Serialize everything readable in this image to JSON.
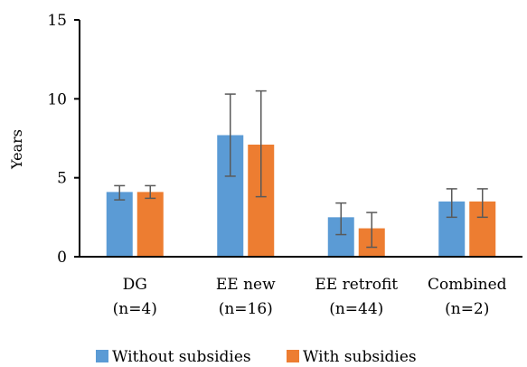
{
  "chart_data": {
    "type": "bar",
    "ylabel": "Years",
    "ylim": [
      0,
      15
    ],
    "yticks": [
      0,
      5,
      10,
      15
    ],
    "categories": [
      [
        "DG",
        "(n=4)"
      ],
      [
        "EE new",
        "(n=16)"
      ],
      [
        "EE retrofit",
        "(n=44)"
      ],
      [
        "Combined",
        "(n=2)"
      ]
    ],
    "series": [
      {
        "name": "Without subsidies",
        "color": "#5B9BD5",
        "values": [
          4.1,
          7.7,
          2.5,
          3.5
        ],
        "error_low": [
          3.6,
          5.1,
          1.4,
          2.5
        ],
        "error_high": [
          4.5,
          10.3,
          3.4,
          4.3
        ]
      },
      {
        "name": "With subsidies",
        "color": "#ED7D31",
        "values": [
          4.1,
          7.1,
          1.8,
          3.5
        ],
        "error_low": [
          3.7,
          3.8,
          0.6,
          2.5
        ],
        "error_high": [
          4.5,
          10.5,
          2.8,
          4.3
        ]
      }
    ],
    "grid": false,
    "legend_position": "bottom"
  }
}
